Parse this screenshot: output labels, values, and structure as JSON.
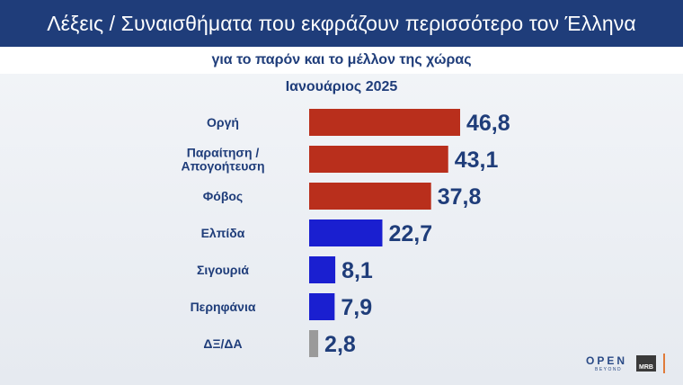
{
  "header": {
    "title": "Λέξεις / Συναισθήματα που εκφράζουν περισσότερο τον Έλληνα",
    "subtitle": "για το παρόν και το μέλλον της χώρας",
    "period": "Ιανουάριος 2025"
  },
  "chart_data": {
    "type": "bar",
    "orientation": "horizontal",
    "categories": [
      [
        "Οργή"
      ],
      [
        "Παραίτηση /",
        "Απογοήτευση"
      ],
      [
        "Φόβος"
      ],
      [
        "Ελπίδα"
      ],
      [
        "Σιγουριά"
      ],
      [
        "Περηφάνια"
      ],
      [
        "ΔΞ/ΔΑ"
      ]
    ],
    "values": [
      46.8,
      43.1,
      37.8,
      22.7,
      8.1,
      7.9,
      2.8
    ],
    "value_labels": [
      "46,8",
      "43,1",
      "37,8",
      "22,7",
      "8,1",
      "7,9",
      "2,8"
    ],
    "colors": [
      "#b92f1c",
      "#b92f1c",
      "#b92f1c",
      "#1a1fd0",
      "#1a1fd0",
      "#1a1fd0",
      "#9a9a9a"
    ],
    "xlim": [
      0,
      50
    ],
    "grid": false,
    "legend": "none"
  },
  "logos": {
    "open": "OPEN",
    "open_tagline": "BEYOND",
    "mrb": "MRB"
  }
}
